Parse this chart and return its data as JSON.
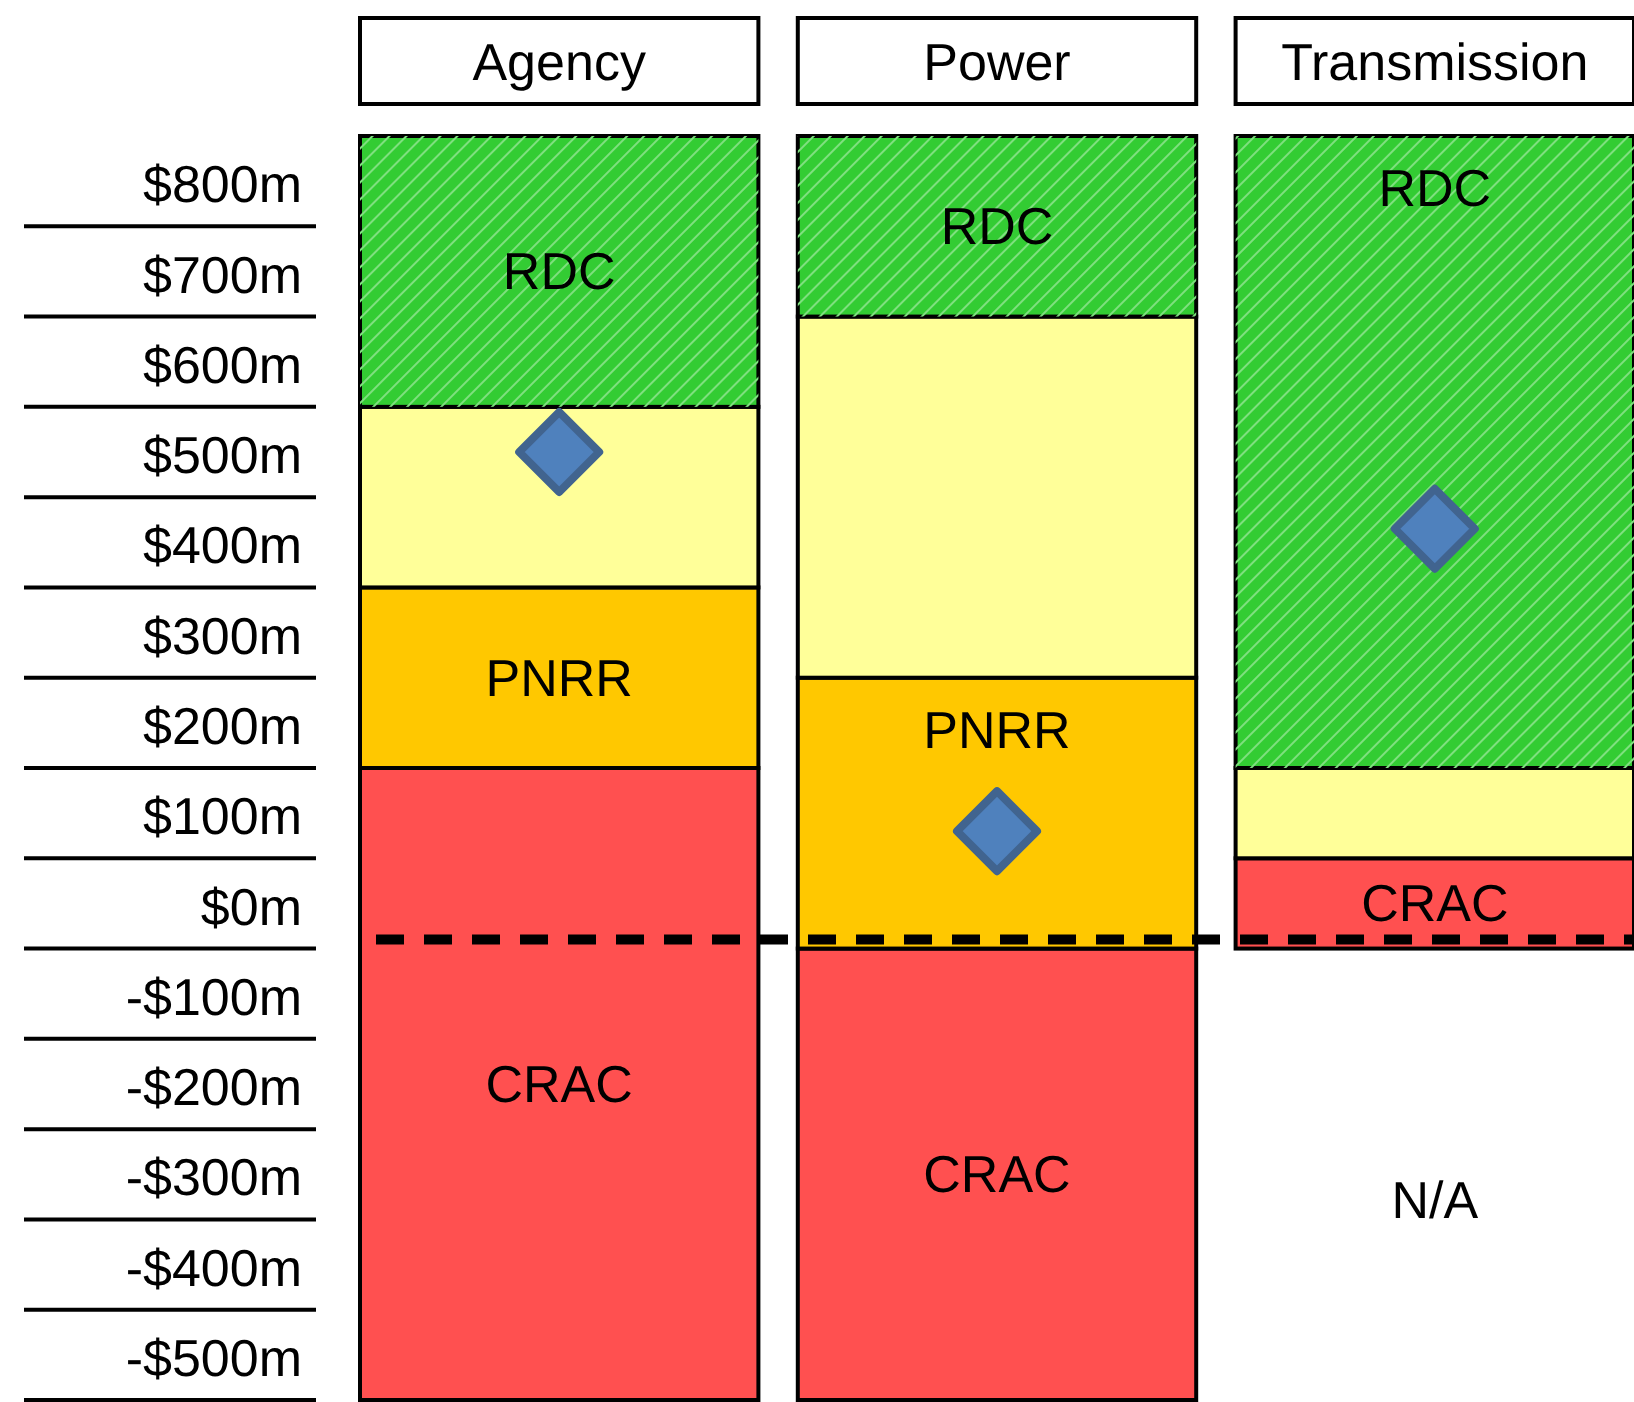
{
  "chart_data": {
    "type": "bar",
    "categories": [
      "Agency",
      "Power",
      "Transmission"
    ],
    "series": [
      {
        "name": "CRAC",
        "color": "#ff5050",
        "base": [
          -500,
          -500,
          0
        ],
        "values": [
          700,
          500,
          100
        ]
      },
      {
        "name": "PNRR",
        "color": "#ffc800",
        "base": [
          200,
          0,
          null
        ],
        "values": [
          200,
          300,
          null
        ]
      },
      {
        "color": "#ffff99",
        "base": [
          400,
          300,
          100
        ],
        "values": [
          200,
          400,
          100
        ]
      },
      {
        "name": "RDC",
        "color": "#33cc33",
        "base": [
          600,
          700,
          200
        ],
        "values": [
          300,
          200,
          700
        ]
      },
      {
        "type": "scatter",
        "marker": "diamond",
        "color": "#4f81bd",
        "x": [
          "Agency",
          "Power",
          "Transmission"
        ],
        "values": [
          550,
          130,
          465
        ]
      }
    ],
    "ylim": [
      -500,
      900
    ],
    "yticks": [
      {
        "value": 800,
        "label": "$800m"
      },
      {
        "value": 700,
        "label": "$700m"
      },
      {
        "value": 600,
        "label": "$600m"
      },
      {
        "value": 500,
        "label": "$500m"
      },
      {
        "value": 400,
        "label": "$400m"
      },
      {
        "value": 300,
        "label": "$300m"
      },
      {
        "value": 200,
        "label": "$200m"
      },
      {
        "value": 100,
        "label": "$100m"
      },
      {
        "value": 0,
        "label": "$0m"
      },
      {
        "value": -100,
        "label": "-$100m"
      },
      {
        "value": -200,
        "label": "-$200m"
      },
      {
        "value": -300,
        "label": "-$300m"
      },
      {
        "value": -400,
        "label": "-$400m"
      },
      {
        "value": -500,
        "label": "-$500m"
      }
    ],
    "ref_lines": [
      {
        "axis": "y",
        "value": 10,
        "color": "#000000",
        "line_style": "dashed"
      }
    ],
    "annotations": [
      "N/A"
    ],
    "legend": false
  }
}
